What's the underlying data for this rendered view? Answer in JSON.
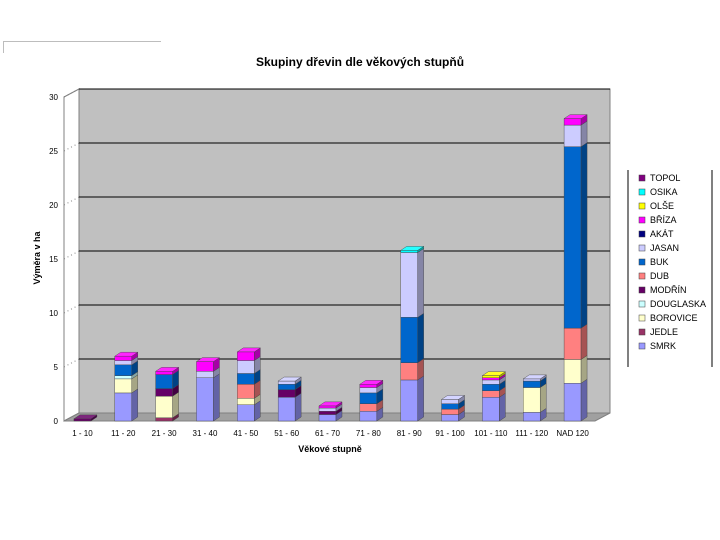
{
  "chart_data": {
    "type": "bar",
    "stacked": true,
    "title": "Skupiny dřevin dle věkových stupňů",
    "xlabel": "Věkové stupně",
    "ylabel": "Výměra v ha",
    "ylim": [
      0,
      30
    ],
    "yticks": [
      "0",
      "5",
      "10",
      "15",
      "20",
      "25",
      "30"
    ],
    "grid": true,
    "legend_position": "right",
    "categories": [
      "1 - 10",
      "11 - 20",
      "21 - 30",
      "31 - 40",
      "41 - 50",
      "51 - 60",
      "61 - 70",
      "71 - 80",
      "81 - 90",
      "91 - 100",
      "101 - 110",
      "111 - 120",
      "NAD 120"
    ],
    "series": [
      {
        "name": "SMRK",
        "color": "#9999ff",
        "values": [
          0,
          2.6,
          0,
          4.0,
          1.5,
          2.2,
          0.6,
          0.9,
          3.8,
          0.6,
          2.2,
          0.8,
          3.5
        ]
      },
      {
        "name": "JEDLE",
        "color": "#993366",
        "values": [
          0,
          0,
          0.3,
          0,
          0,
          0,
          0,
          0,
          0,
          0,
          0,
          0,
          0
        ]
      },
      {
        "name": "BOROVICE",
        "color": "#ffffcc",
        "values": [
          0,
          1.3,
          2.0,
          0,
          0.6,
          0,
          0,
          0,
          0,
          0,
          0,
          2.3,
          2.2
        ]
      },
      {
        "name": "DOUGLASKA",
        "color": "#ccffff",
        "values": [
          0,
          0.3,
          0,
          0,
          0,
          0,
          0,
          0,
          0,
          0,
          0,
          0,
          0
        ]
      },
      {
        "name": "MODŘÍN",
        "color": "#660066",
        "values": [
          0.2,
          0,
          0.7,
          0,
          0,
          0.7,
          0.3,
          0,
          0,
          0,
          0,
          0,
          0
        ]
      },
      {
        "name": "DUB",
        "color": "#ff8080",
        "values": [
          0,
          0,
          0,
          0,
          1.3,
          0,
          0,
          0.7,
          1.6,
          0.5,
          0.6,
          0,
          2.9
        ]
      },
      {
        "name": "BUK",
        "color": "#0066cc",
        "values": [
          0,
          1.0,
          1.3,
          0,
          1.0,
          0.5,
          0,
          1.0,
          4.2,
          0.5,
          0.6,
          0.6,
          16.8
        ]
      },
      {
        "name": "JASAN",
        "color": "#ccccff",
        "values": [
          0,
          0.4,
          0,
          0.6,
          1.2,
          0.3,
          0.3,
          0.5,
          6.0,
          0.4,
          0.4,
          0.2,
          2.0
        ]
      },
      {
        "name": "AKÁT",
        "color": "#000080",
        "values": [
          0,
          0,
          0,
          0,
          0,
          0,
          0,
          0,
          0,
          0,
          0,
          0,
          0
        ]
      },
      {
        "name": "BŘÍZA",
        "color": "#ff00ff",
        "values": [
          0,
          0.4,
          0.3,
          0.9,
          0.8,
          0,
          0.2,
          0.3,
          0,
          0,
          0.2,
          0,
          0.6
        ]
      },
      {
        "name": "OLŠE",
        "color": "#ffff00",
        "values": [
          0,
          0,
          0,
          0,
          0,
          0,
          0,
          0,
          0,
          0,
          0.2,
          0,
          0
        ]
      },
      {
        "name": "OSIKA",
        "color": "#00ffff",
        "values": [
          0,
          0,
          0,
          0,
          0,
          0,
          0,
          0,
          0.2,
          0,
          0,
          0,
          0
        ]
      },
      {
        "name": "TOPOL",
        "color": "#800080",
        "values": [
          0,
          0,
          0,
          0,
          0,
          0,
          0,
          0,
          0,
          0,
          0,
          0,
          0
        ]
      }
    ],
    "legend_order": [
      "TOPOL",
      "OSIKA",
      "OLŠE",
      "BŘÍZA",
      "AKÁT",
      "JASAN",
      "BUK",
      "DUB",
      "MODŘÍN",
      "DOUGLASKA",
      "BOROVICE",
      "JEDLE",
      "SMRK"
    ]
  }
}
